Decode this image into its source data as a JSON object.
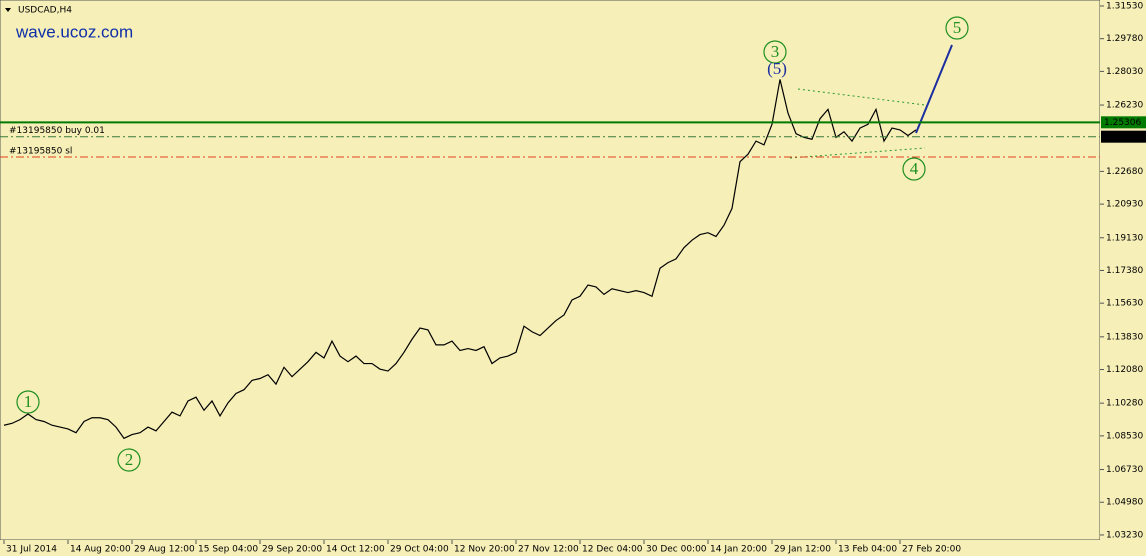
{
  "chart_data": {
    "type": "line",
    "title": "USDCAD,H4",
    "watermark": "wave.ucoz.com",
    "color": "#000000",
    "background": "#f6efb8",
    "categories": [
      "31 Jul 2014",
      null,
      null,
      null,
      null,
      null,
      null,
      null,
      "14 Aug 20:00",
      null,
      null,
      null,
      null,
      null,
      null,
      null,
      "29 Aug 12:00",
      null,
      null,
      null,
      null,
      null,
      null,
      null,
      "15 Sep 04:00",
      null,
      null,
      null,
      null,
      null,
      null,
      null,
      "29 Sep 20:00",
      null,
      null,
      null,
      null,
      null,
      null,
      null,
      "14 Oct 12:00",
      null,
      null,
      null,
      null,
      null,
      null,
      null,
      "29 Oct 04:00",
      null,
      null,
      null,
      null,
      null,
      null,
      null,
      "12 Nov 20:00",
      null,
      null,
      null,
      null,
      null,
      null,
      null,
      "27 Nov 12:00",
      null,
      null,
      null,
      null,
      null,
      null,
      null,
      "12 Dec 04:00",
      null,
      null,
      null,
      null,
      null,
      null,
      null,
      "30 Dec 00:00",
      null,
      null,
      null,
      null,
      null,
      null,
      null,
      "14 Jan 20:00",
      null,
      null,
      null,
      null,
      null,
      null,
      null,
      "29 Jan 12:00",
      null,
      null,
      null,
      null,
      null,
      null,
      null,
      "13 Feb 04:00",
      null,
      null,
      null,
      null,
      null,
      null,
      null,
      "27 Feb 20:00",
      null,
      null
    ],
    "values": [
      1.091,
      1.092,
      1.094,
      1.097,
      1.094,
      1.093,
      1.091,
      1.09,
      1.089,
      1.087,
      1.093,
      1.095,
      1.095,
      1.094,
      1.09,
      1.084,
      1.086,
      1.087,
      1.09,
      1.088,
      1.093,
      1.098,
      1.096,
      1.104,
      1.106,
      1.099,
      1.104,
      1.096,
      1.103,
      1.108,
      1.11,
      1.115,
      1.116,
      1.118,
      1.113,
      1.122,
      1.117,
      1.121,
      1.125,
      1.13,
      1.127,
      1.136,
      1.128,
      1.125,
      1.128,
      1.124,
      1.124,
      1.121,
      1.12,
      1.124,
      1.13,
      1.137,
      1.143,
      1.142,
      1.134,
      1.134,
      1.136,
      1.131,
      1.132,
      1.131,
      1.133,
      1.124,
      1.127,
      1.128,
      1.13,
      1.144,
      1.141,
      1.139,
      1.143,
      1.147,
      1.15,
      1.158,
      1.16,
      1.166,
      1.165,
      1.161,
      1.164,
      1.163,
      1.162,
      1.163,
      1.162,
      1.16,
      1.175,
      1.178,
      1.18,
      1.186,
      1.19,
      1.193,
      1.194,
      1.192,
      1.198,
      1.207,
      1.232,
      1.236,
      1.243,
      1.241,
      1.252,
      1.276,
      1.258,
      1.247,
      1.245,
      1.244,
      1.255,
      1.26,
      1.245,
      1.248,
      1.243,
      1.25,
      1.252,
      1.26,
      1.243,
      1.25,
      1.249,
      1.246,
      1.249
    ],
    "ylim": [
      1.0296,
      1.3185
    ],
    "yticks": [
      {
        "value": 1.3153,
        "label": "1.31530"
      },
      {
        "value": 1.2978,
        "label": "1.29780"
      },
      {
        "value": 1.2803,
        "label": "1.28030"
      },
      {
        "value": 1.2623,
        "label": "1.26230"
      },
      {
        "value": 1.2268,
        "label": "1.22680"
      },
      {
        "value": 1.2093,
        "label": "1.20930"
      },
      {
        "value": 1.1913,
        "label": "1.19130"
      },
      {
        "value": 1.1738,
        "label": "1.17380"
      },
      {
        "value": 1.1563,
        "label": "1.15630"
      },
      {
        "value": 1.1383,
        "label": "1.13830"
      },
      {
        "value": 1.1208,
        "label": "1.12080"
      },
      {
        "value": 1.1028,
        "label": "1.10280"
      },
      {
        "value": 1.0853,
        "label": "1.08530"
      },
      {
        "value": 1.0673,
        "label": "1.06730"
      },
      {
        "value": 1.0498,
        "label": "1.04980"
      },
      {
        "value": 1.0323,
        "label": "1.03230"
      }
    ],
    "levels": [
      {
        "value": 1.25306,
        "color": "#007a00",
        "style": "solid",
        "axis_label": true
      },
      {
        "name": "#13195850 buy 0.01",
        "value": 1.24537,
        "color": "#3a7a3a",
        "style": "dashdot",
        "axis_label": true
      },
      {
        "name": "#13195850 sl",
        "value": 1.2345,
        "color": "#e0401c",
        "style": "dashdot",
        "axis_label": false
      }
    ],
    "annotations": [
      "1",
      "2",
      "3",
      "(5)",
      "4",
      "5"
    ]
  }
}
